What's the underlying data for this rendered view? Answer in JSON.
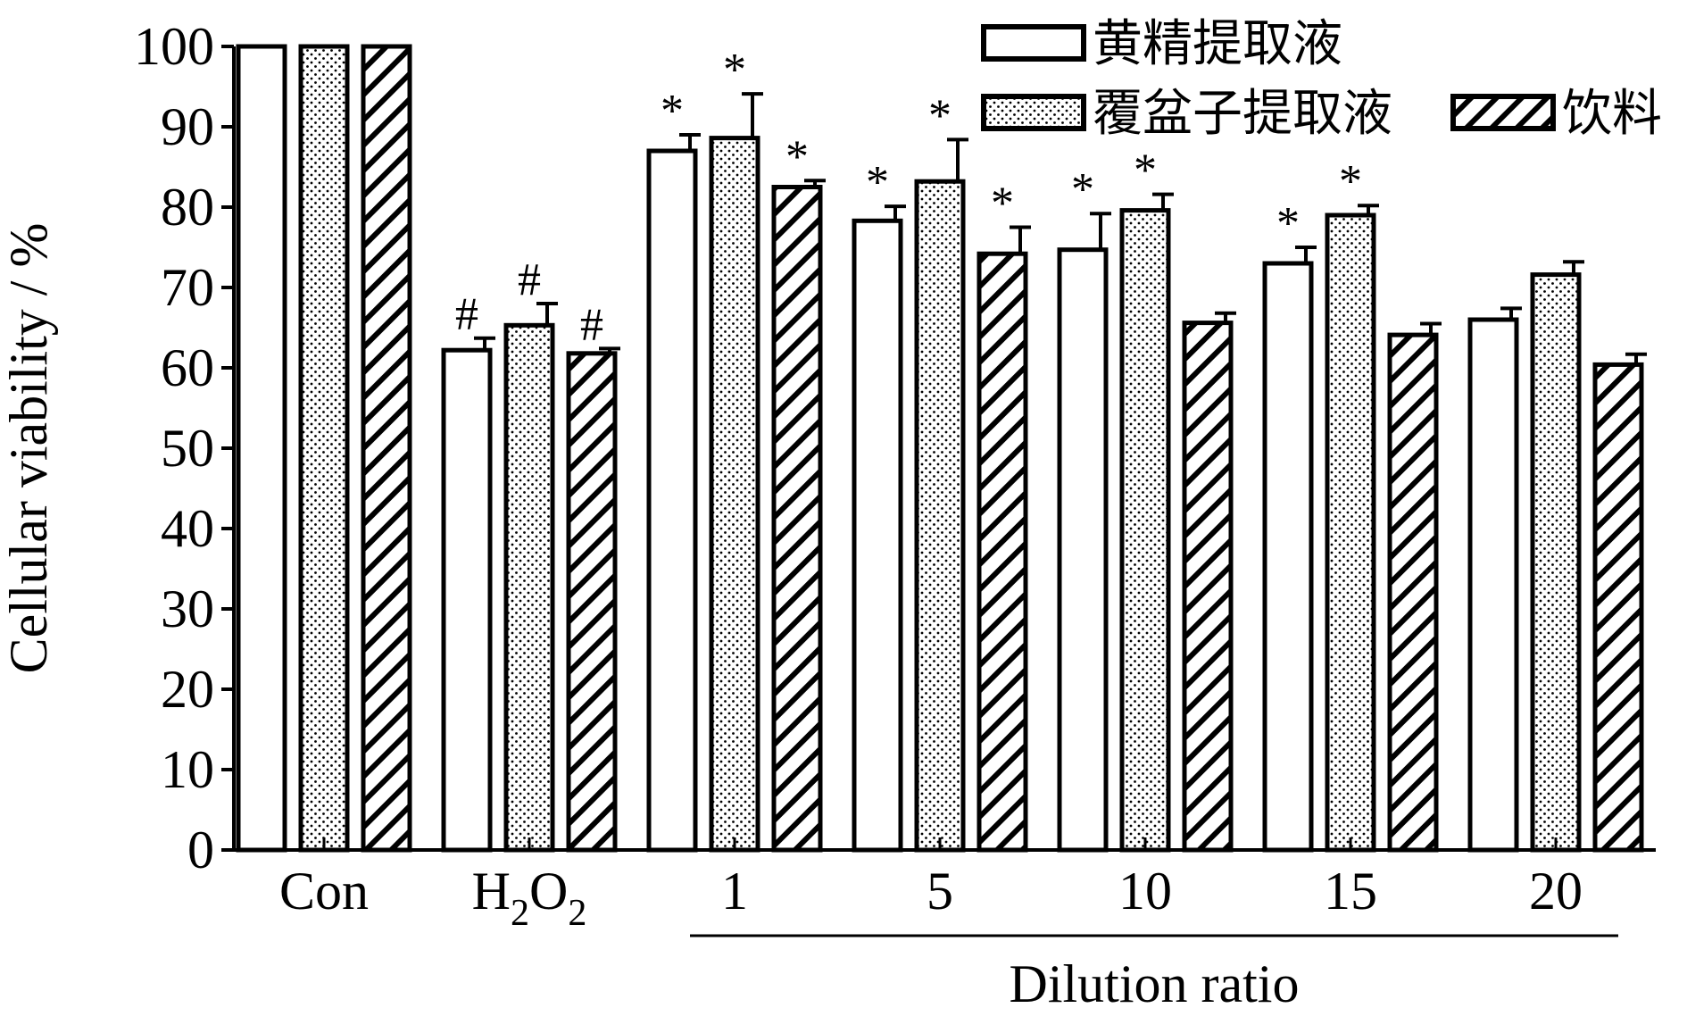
{
  "chart_data": {
    "type": "bar",
    "categories": [
      "Con",
      "H2O2",
      "1",
      "5",
      "10",
      "15",
      "20"
    ],
    "category_labels": [
      {
        "text": "Con"
      },
      {
        "text": "H",
        "sub1": "2",
        "mid": "O",
        "sub2": "2"
      },
      {
        "text": "1"
      },
      {
        "text": "5"
      },
      {
        "text": "10"
      },
      {
        "text": "15"
      },
      {
        "text": "20"
      }
    ],
    "series": [
      {
        "name": "黄精提取液",
        "pattern": "plain",
        "values": [
          100,
          62.2,
          87.0,
          78.3,
          74.7,
          73.0,
          66.0
        ],
        "errors": [
          0,
          1.5,
          2.0,
          1.8,
          4.5,
          2.0,
          1.4
        ],
        "marks": [
          "",
          "#",
          "*",
          "*",
          "*",
          "*",
          ""
        ]
      },
      {
        "name": "覆盆子提取液",
        "pattern": "dots",
        "values": [
          100,
          65.3,
          88.6,
          83.2,
          79.6,
          79.0,
          71.6
        ],
        "errors": [
          0,
          2.7,
          5.5,
          5.2,
          2.0,
          1.2,
          1.6
        ],
        "marks": [
          "",
          "#",
          "*",
          "*",
          "*",
          "*",
          ""
        ]
      },
      {
        "name": "饮料",
        "pattern": "hatch",
        "values": [
          100,
          61.8,
          82.5,
          74.2,
          65.6,
          64.1,
          60.4
        ],
        "errors": [
          0,
          0.6,
          0.8,
          3.3,
          1.2,
          1.4,
          1.3
        ],
        "marks": [
          "",
          "#",
          "*",
          "*",
          "",
          "",
          ""
        ]
      }
    ],
    "ylabel": "Cellular viability / %",
    "xlabel": "Dilution ratio",
    "xlabel_group": [
      "1",
      "5",
      "10",
      "15",
      "20"
    ],
    "ylim": [
      0,
      100
    ],
    "yticks": [
      0,
      10,
      20,
      30,
      40,
      50,
      60,
      70,
      80,
      90,
      100
    ],
    "grid": false,
    "legend_position": "top-right"
  }
}
